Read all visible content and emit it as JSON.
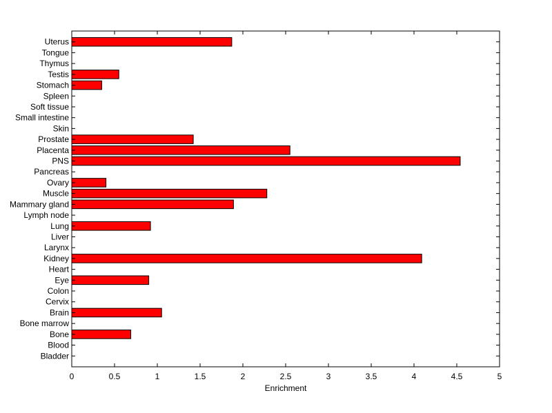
{
  "chart_data": {
    "type": "bar",
    "orientation": "horizontal",
    "title": "",
    "xlabel": "Enrichment",
    "ylabel": "",
    "xlim": [
      0,
      5
    ],
    "xticks": [
      "0",
      "0.5",
      "1",
      "1.5",
      "2",
      "2.5",
      "3",
      "3.5",
      "4",
      "4.5",
      "5"
    ],
    "grid": false,
    "bar_color": "#ff0000",
    "bar_edge_color": "#000000",
    "categories": [
      "Bladder",
      "Blood",
      "Bone",
      "Bone marrow",
      "Brain",
      "Cervix",
      "Colon",
      "Eye",
      "Heart",
      "Kidney",
      "Larynx",
      "Liver",
      "Lung",
      "Lymph node",
      "Mammary gland",
      "Muscle",
      "Ovary",
      "Pancreas",
      "PNS",
      "Placenta",
      "Prostate",
      "Skin",
      "Small intestine",
      "Soft tissue",
      "Spleen",
      "Stomach",
      "Testis",
      "Thymus",
      "Tongue",
      "Uterus"
    ],
    "values": [
      0,
      0,
      0.69,
      0,
      1.05,
      0,
      0,
      0.9,
      0,
      4.09,
      0,
      0,
      0.92,
      0,
      1.89,
      2.28,
      0.4,
      0,
      4.54,
      2.55,
      1.42,
      0,
      0,
      0,
      0,
      0.35,
      0.55,
      0,
      0,
      1.87
    ]
  }
}
